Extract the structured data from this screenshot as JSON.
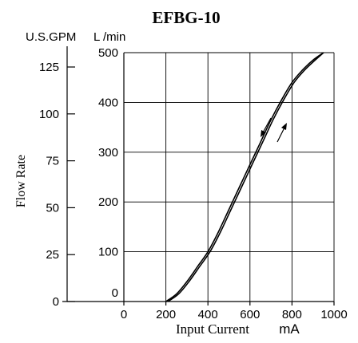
{
  "chart_data": {
    "type": "line",
    "title": "EFBG-10",
    "xlabel": "Input Current",
    "xunit": "mA",
    "ylabel": "Flow Rate",
    "y_left_unit": "U.S.GPM",
    "y_right_unit": "L /min",
    "xlim": [
      0,
      1000
    ],
    "ylim": [
      0,
      500
    ],
    "x_ticks": [
      "0",
      "200",
      "400",
      "600",
      "800",
      "1000"
    ],
    "y_ticks_lmin": [
      "0",
      "100",
      "200",
      "300",
      "400",
      "500"
    ],
    "y_ticks_gpm": [
      "0",
      "25",
      "50",
      "75",
      "100",
      "125"
    ],
    "grid": true,
    "series": [
      {
        "x": [
          200,
          250,
          300,
          350,
          400,
          450,
          500,
          550,
          600,
          650,
          700,
          750,
          800,
          850,
          900,
          950
        ],
        "y": [
          0,
          15,
          40,
          70,
          100,
          140,
          185,
          230,
          275,
          320,
          365,
          405,
          440,
          465,
          485,
          500
        ]
      },
      {
        "x": [
          210,
          260,
          310,
          360,
          410,
          460,
          510,
          560,
          610,
          660,
          710,
          760,
          810,
          860,
          910,
          950
        ],
        "y": [
          0,
          15,
          40,
          70,
          100,
          140,
          185,
          230,
          275,
          320,
          365,
          405,
          440,
          465,
          485,
          500
        ]
      }
    ]
  }
}
